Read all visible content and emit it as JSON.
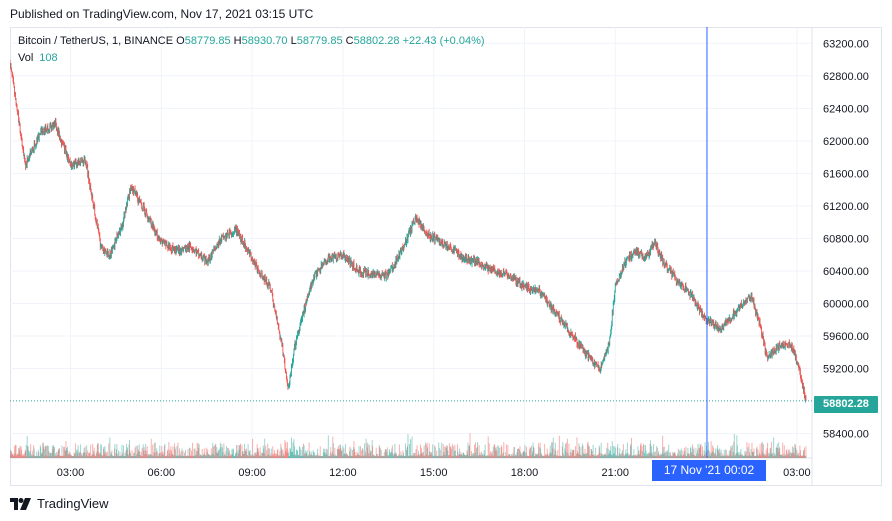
{
  "published": "Published on TradingView.com, Nov 17, 2021 03:15 UTC",
  "legend": {
    "symbol": "Bitcoin / TetherUS, 1, BINANCE",
    "o_label": "O",
    "o_value": "58779.85",
    "h_label": "H",
    "h_value": "58930.70",
    "l_label": "L",
    "l_value": "58779.85",
    "c_label": "C",
    "c_value": "58802.28",
    "change": "+22.43 (+0.04%)"
  },
  "volume": {
    "label": "Vol",
    "value": "108"
  },
  "crosshair_label": "17 Nov '21   00:02",
  "last_price_label": "58802.28",
  "brand": "TradingView",
  "colors": {
    "up": "#26a69a",
    "down": "#ef5350",
    "crosshair": "#2962ff",
    "grid": "#f0f3fa"
  },
  "chart_data": {
    "type": "line",
    "title": "",
    "xlabel": "",
    "ylabel": "",
    "x_ticks": [
      "03:00",
      "06:00",
      "09:00",
      "12:00",
      "15:00",
      "18:00",
      "21:00",
      "03:00"
    ],
    "x_tick_hours": [
      3,
      6,
      9,
      12,
      15,
      18,
      21,
      27
    ],
    "y_ticks": [
      63200,
      62800,
      62400,
      62000,
      61600,
      61200,
      60800,
      60400,
      60000,
      59600,
      59200,
      58400
    ],
    "ylim": [
      58100,
      63400
    ],
    "xlim_hours": [
      1.0,
      27.5
    ],
    "grid": true,
    "last_price": 58802.28,
    "crosshair_hour": 24.03,
    "series": [
      {
        "x": [
          1.0,
          1.25,
          1.5,
          2.0,
          2.5,
          3.0,
          3.5,
          4.0,
          4.3,
          4.7,
          5.0,
          5.5,
          6.0,
          6.5,
          7.0,
          7.5,
          8.0,
          8.5,
          9.0,
          9.3,
          9.6,
          10.0,
          10.2,
          10.4,
          10.7,
          11.0,
          11.5,
          12.0,
          12.5,
          13.0,
          13.5,
          14.0,
          14.4,
          14.8,
          15.0,
          15.5,
          16.0,
          16.5,
          17.0,
          17.5,
          18.0,
          18.5,
          19.0,
          19.5,
          20.0,
          20.5,
          20.8,
          21.0,
          21.3,
          21.7,
          22.0,
          22.3,
          22.6,
          23.0,
          23.5,
          24.0,
          24.5,
          25.0,
          25.5,
          25.8,
          26.0,
          26.5,
          26.8,
          27.0,
          27.3
        ],
        "y": [
          62950,
          62350,
          61700,
          62100,
          62200,
          61700,
          61750,
          60700,
          60600,
          60950,
          61450,
          61100,
          60750,
          60650,
          60700,
          60500,
          60800,
          60900,
          60550,
          60350,
          60200,
          59450,
          58950,
          59450,
          59900,
          60300,
          60550,
          60600,
          60400,
          60350,
          60350,
          60700,
          61050,
          60850,
          60800,
          60700,
          60550,
          60500,
          60400,
          60350,
          60200,
          60150,
          59900,
          59650,
          59400,
          59200,
          59500,
          60200,
          60500,
          60650,
          60550,
          60750,
          60500,
          60300,
          60100,
          59800,
          59700,
          59900,
          60100,
          59700,
          59350,
          59500,
          59500,
          59300,
          58802
        ]
      }
    ]
  }
}
